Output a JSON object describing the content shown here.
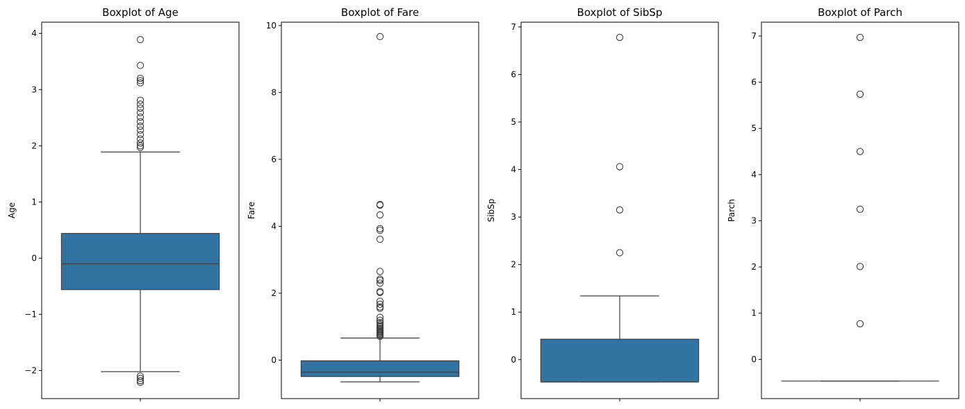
{
  "chart_data": [
    {
      "type": "box",
      "title": "Boxplot of Age",
      "ylabel": "Age",
      "ylim": [
        -2.5,
        4.2
      ],
      "yticks": [
        {
          "v": 4,
          "label": "4"
        },
        {
          "v": 3,
          "label": "3"
        },
        {
          "v": 2,
          "label": "2"
        },
        {
          "v": 1,
          "label": "1"
        },
        {
          "v": 0,
          "label": "0"
        },
        {
          "v": -1,
          "label": "−1"
        },
        {
          "v": -2,
          "label": "−2"
        }
      ],
      "box": {
        "whisker_low": -2.02,
        "q1": -0.56,
        "median": -0.1,
        "q3": 0.44,
        "whisker_high": 1.89
      },
      "outliers": [
        3.89,
        3.43,
        3.2,
        3.16,
        3.12,
        2.81,
        2.74,
        2.67,
        2.59,
        2.51,
        2.43,
        2.35,
        2.28,
        2.2,
        2.12,
        2.05,
        2.0,
        1.97,
        -2.1,
        -2.14,
        -2.18,
        -2.21
      ],
      "color": "#3274a1"
    },
    {
      "type": "box",
      "title": "Boxplot of Fare",
      "ylabel": "Fare",
      "ylim": [
        -1.15,
        10.1
      ],
      "yticks": [
        {
          "v": 10,
          "label": "10"
        },
        {
          "v": 8,
          "label": "8"
        },
        {
          "v": 6,
          "label": "6"
        },
        {
          "v": 4,
          "label": "4"
        },
        {
          "v": 2,
          "label": "2"
        },
        {
          "v": 0,
          "label": "0"
        }
      ],
      "box": {
        "whisker_low": -0.65,
        "q1": -0.49,
        "median": -0.36,
        "q3": -0.02,
        "whisker_high": 0.66
      },
      "outliers": [
        9.67,
        4.65,
        4.63,
        4.34,
        3.93,
        3.88,
        3.61,
        2.65,
        2.42,
        2.38,
        2.3,
        2.05,
        2.02,
        1.76,
        1.67,
        1.59,
        1.55,
        1.28,
        1.19,
        1.12,
        1.07,
        1.03,
        0.99,
        0.95,
        0.92,
        0.89,
        0.86,
        0.83,
        0.8,
        0.77,
        0.74,
        0.71
      ],
      "color": "#3274a1"
    },
    {
      "type": "box",
      "title": "Boxplot of SibSp",
      "ylabel": "SibSp",
      "ylim": [
        -0.82,
        7.1
      ],
      "yticks": [
        {
          "v": 7,
          "label": "7"
        },
        {
          "v": 6,
          "label": "6"
        },
        {
          "v": 5,
          "label": "5"
        },
        {
          "v": 4,
          "label": "4"
        },
        {
          "v": 3,
          "label": "3"
        },
        {
          "v": 2,
          "label": "2"
        },
        {
          "v": 1,
          "label": "1"
        },
        {
          "v": 0,
          "label": "0"
        }
      ],
      "box": {
        "whisker_low": -0.47,
        "q1": -0.47,
        "median": -0.47,
        "q3": 0.43,
        "whisker_high": 1.34
      },
      "outliers": [
        6.78,
        4.06,
        3.15,
        2.25
      ],
      "color": "#3274a1"
    },
    {
      "type": "box",
      "title": "Boxplot of Parch",
      "ylabel": "Parch",
      "ylim": [
        -0.85,
        7.3
      ],
      "yticks": [
        {
          "v": 7,
          "label": "7"
        },
        {
          "v": 6,
          "label": "6"
        },
        {
          "v": 5,
          "label": "5"
        },
        {
          "v": 4,
          "label": "4"
        },
        {
          "v": 3,
          "label": "3"
        },
        {
          "v": 2,
          "label": "2"
        },
        {
          "v": 1,
          "label": "1"
        },
        {
          "v": 0,
          "label": "0"
        }
      ],
      "box": {
        "whisker_low": -0.47,
        "q1": -0.47,
        "median": -0.47,
        "q3": -0.47,
        "whisker_high": -0.47
      },
      "outliers": [
        6.97,
        5.74,
        4.5,
        3.25,
        2.01,
        0.77
      ],
      "color": "#3274a1"
    }
  ]
}
